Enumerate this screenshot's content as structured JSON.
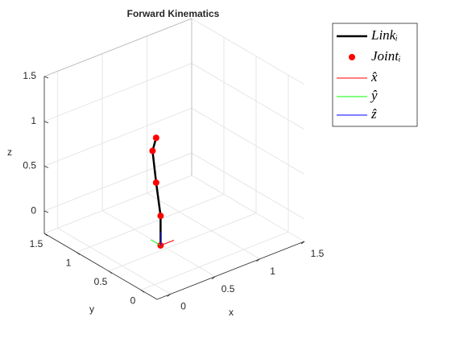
{
  "chart_data": {
    "type": "line3d",
    "title": "Forward Kinematics",
    "xlabel": "x",
    "ylabel": "y",
    "zlabel": "z",
    "xlim": [
      -0.15,
      1.5
    ],
    "ylim": [
      -0.25,
      1.5
    ],
    "zlim": [
      -0.25,
      1.5
    ],
    "xticks": [
      0,
      0.5,
      1,
      1.5
    ],
    "yticks": [
      0,
      0.5,
      1,
      1.5
    ],
    "zticks": [
      0,
      0.5,
      1,
      1.5
    ],
    "grid": true,
    "series": [
      {
        "name": "Linkᵢ",
        "style": "line",
        "color": "#000000",
        "x": [
          0.07,
          0.07,
          0.02,
          -0.02,
          0.02
        ],
        "y": [
          0,
          0,
          0,
          0,
          0
        ],
        "z": [
          0.16,
          0.49,
          0.88,
          1.25,
          1.38
        ]
      },
      {
        "name": "Jointᵢ",
        "style": "marker",
        "color": "#ff0000",
        "x": [
          0.07,
          0.07,
          0.02,
          -0.02,
          0.02
        ],
        "y": [
          0,
          0,
          0,
          0,
          0
        ],
        "z": [
          0.16,
          0.49,
          0.88,
          1.25,
          1.38
        ]
      },
      {
        "name": "x̂",
        "style": "thin",
        "color": "#ff0000",
        "x": [
          0.07,
          0.22
        ],
        "y": [
          0,
          0
        ],
        "z": [
          0.16,
          0.16
        ]
      },
      {
        "name": "ŷ",
        "style": "thin",
        "color": "#00ff00",
        "x": [
          0.07,
          0.07
        ],
        "y": [
          0,
          0.15
        ],
        "z": [
          0.16,
          0.16
        ]
      },
      {
        "name": "ẑ",
        "style": "thin",
        "color": "#0000ff",
        "x": [
          0.07,
          0.07
        ],
        "y": [
          0,
          0
        ],
        "z": [
          0.16,
          0.31
        ]
      }
    ]
  }
}
